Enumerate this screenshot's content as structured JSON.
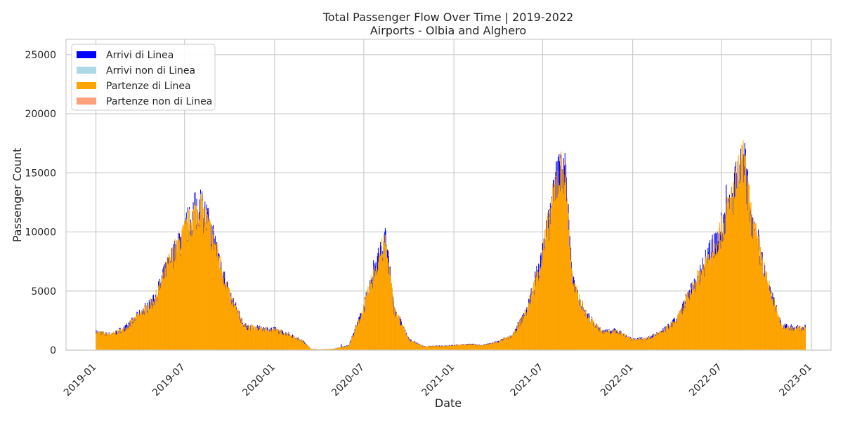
{
  "chart_data": {
    "type": "area",
    "title": "Total Passenger Flow Over Time | 2019-2022",
    "subtitle": "Airports - Olbia and Alghero",
    "xlabel": "Date",
    "ylabel": "Passenger Count",
    "x_range": [
      "2018-11-01",
      "2023-02-10"
    ],
    "ylim": [
      0,
      26300
    ],
    "grid": true,
    "legend_position": "top-left",
    "x_ticks": [
      "2019-01",
      "2019-07",
      "2020-01",
      "2020-07",
      "2021-01",
      "2021-07",
      "2022-01",
      "2022-07",
      "2023-01"
    ],
    "y_ticks": [
      0,
      5000,
      10000,
      15000,
      20000,
      25000
    ],
    "y_tick_labels": [
      "0",
      "5000",
      "10000",
      "15000",
      "20000",
      "25000"
    ],
    "series": [
      {
        "name": "Arrivi di Linea",
        "color": "#0000ff"
      },
      {
        "name": "Arrivi non di Linea",
        "color": "#add8e6"
      },
      {
        "name": "Partenze di Linea",
        "color": "#ffa500"
      },
      {
        "name": "Partenze non di Linea",
        "color": "#ffa07a"
      }
    ],
    "partenze_di_linea_profile": {
      "dates": [
        "2019-01-01",
        "2019-02-01",
        "2019-03-01",
        "2019-04-01",
        "2019-05-01",
        "2019-06-01",
        "2019-07-01",
        "2019-08-01",
        "2019-09-01",
        "2019-10-01",
        "2019-11-01",
        "2019-12-01",
        "2020-01-01",
        "2020-02-01",
        "2020-03-01",
        "2020-03-15",
        "2020-04-01",
        "2020-05-01",
        "2020-06-01",
        "2020-07-01",
        "2020-08-01",
        "2020-08-15",
        "2020-09-01",
        "2020-10-01",
        "2020-11-01",
        "2020-12-01",
        "2021-01-01",
        "2021-02-01",
        "2021-03-01",
        "2021-04-01",
        "2021-05-01",
        "2021-06-01",
        "2021-07-01",
        "2021-08-01",
        "2021-08-15",
        "2021-09-01",
        "2021-10-01",
        "2021-11-01",
        "2021-12-01",
        "2022-01-01",
        "2022-02-01",
        "2022-03-01",
        "2022-04-01",
        "2022-05-01",
        "2022-06-01",
        "2022-07-01",
        "2022-08-01",
        "2022-08-15",
        "2022-09-01",
        "2022-10-01",
        "2022-11-01",
        "2022-12-01",
        "2022-12-20"
      ],
      "values": [
        1500,
        1300,
        1800,
        3000,
        4200,
        7500,
        9800,
        12200,
        9000,
        4500,
        2000,
        1800,
        1700,
        1300,
        700,
        100,
        50,
        100,
        400,
        3500,
        7800,
        9000,
        3500,
        900,
        300,
        350,
        400,
        500,
        400,
        700,
        1200,
        3500,
        8000,
        14500,
        15500,
        5500,
        2800,
        1500,
        1600,
        900,
        1000,
        1500,
        2500,
        5000,
        7500,
        10000,
        14000,
        16000,
        11000,
        6000,
        2000,
        1800,
        1900
      ]
    },
    "arrivi_di_linea_notes": {
      "dates": [
        "2020-05-15",
        "2020-07-20",
        "2022-07-10"
      ],
      "values": [
        500,
        7600,
        14000
      ]
    }
  }
}
